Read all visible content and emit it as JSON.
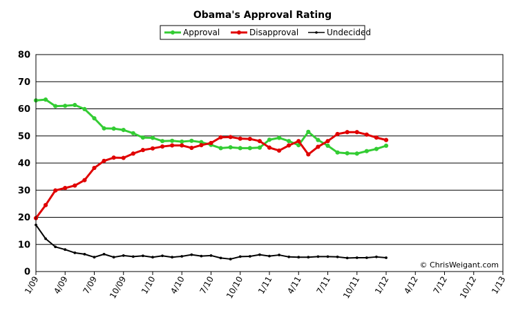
{
  "chart_data": {
    "type": "line",
    "title": "Obama's Approval Rating",
    "xlabel": "",
    "ylabel": "",
    "ylim": [
      0,
      80
    ],
    "yticks": [
      0,
      10,
      20,
      30,
      40,
      50,
      60,
      70,
      80
    ],
    "xtick_labels": [
      "1/09",
      "4/09",
      "7/09",
      "10/09",
      "1/10",
      "4/10",
      "7/10",
      "10/10",
      "1/11",
      "4/11",
      "7/11",
      "10/11",
      "1/12",
      "4/12",
      "7/12",
      "10/12",
      "1/13"
    ],
    "x_months": [
      "1/09",
      "2/09",
      "3/09",
      "4/09",
      "5/09",
      "6/09",
      "7/09",
      "8/09",
      "9/09",
      "10/09",
      "11/09",
      "12/09",
      "1/10",
      "2/10",
      "3/10",
      "4/10",
      "5/10",
      "6/10",
      "7/10",
      "8/10",
      "9/10",
      "10/10",
      "11/10",
      "12/10",
      "1/11",
      "2/11",
      "3/11",
      "4/11",
      "5/11",
      "6/11",
      "7/11",
      "8/11",
      "9/11",
      "10/11",
      "11/11",
      "12/11",
      "1/12"
    ],
    "grid": true,
    "legend_position": "top",
    "credit": "© ChrisWeigant.com",
    "series": [
      {
        "name": "Approval",
        "color": "#33cc33",
        "marker": "circle",
        "values": [
          63.1,
          63.4,
          61.0,
          61.1,
          61.4,
          59.9,
          56.5,
          52.8,
          52.7,
          52.2,
          51.0,
          49.4,
          49.3,
          48.1,
          48.2,
          47.9,
          48.2,
          47.7,
          46.7,
          45.5,
          45.8,
          45.5,
          45.5,
          45.7,
          48.6,
          49.3,
          48.1,
          46.6,
          51.5,
          48.5,
          46.4,
          43.9,
          43.6,
          43.5,
          44.4,
          45.2,
          46.4
        ]
      },
      {
        "name": "Disapproval",
        "color": "#e00000",
        "marker": "circle",
        "values": [
          19.7,
          24.5,
          29.9,
          30.8,
          31.7,
          33.7,
          38.2,
          40.8,
          42.0,
          41.9,
          43.5,
          44.8,
          45.4,
          46.1,
          46.5,
          46.5,
          45.6,
          46.6,
          47.4,
          49.5,
          49.6,
          49.0,
          48.9,
          48.1,
          45.7,
          44.6,
          46.5,
          48.1,
          43.2,
          46.0,
          48.1,
          50.7,
          51.4,
          51.4,
          50.5,
          49.4,
          48.5
        ]
      },
      {
        "name": "Undecided",
        "color": "#000000",
        "marker": "small-dot",
        "values": [
          17.2,
          12.1,
          9.1,
          8.1,
          6.9,
          6.4,
          5.3,
          6.4,
          5.3,
          5.9,
          5.5,
          5.8,
          5.3,
          5.8,
          5.3,
          5.6,
          6.2,
          5.7,
          5.9,
          5.0,
          4.6,
          5.5,
          5.6,
          6.2,
          5.7,
          6.1,
          5.4,
          5.3,
          5.3,
          5.5,
          5.5,
          5.4,
          5.0,
          5.1,
          5.1,
          5.4,
          5.1
        ]
      }
    ]
  }
}
